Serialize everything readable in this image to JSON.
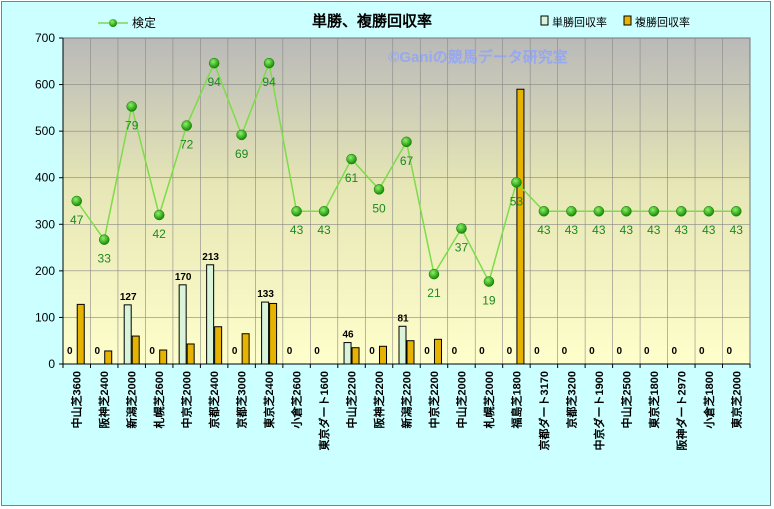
{
  "chart_data": {
    "type": "bar",
    "title": "単勝、複勝回収率",
    "watermark": "©Ganiの競馬データ研究室",
    "ylim": [
      0,
      700
    ],
    "yticks": [
      "0",
      "100",
      "200",
      "300",
      "400",
      "500",
      "600",
      "700"
    ],
    "categories": [
      "中山芝3600",
      "阪神芝2400",
      "新潟芝2000",
      "札幌芝2600",
      "中京芝2000",
      "京都芝2400",
      "京都芝3000",
      "東京芝2400",
      "小倉芝2600",
      "東京ダート1600",
      "中山芝2200",
      "阪神芝2200",
      "新潟芝2200",
      "中京芝2200",
      "中山芝2000",
      "札幌芝2000",
      "福島芝1800",
      "京都ダート3170",
      "京都芝3200",
      "中京ダート1900",
      "中山芝2500",
      "東京芝1800",
      "阪神ダート2970",
      "小倉芝1800",
      "東京芝2000"
    ],
    "legend": [
      "検定",
      "単勝回収率",
      "複勝回収率"
    ],
    "series": [
      {
        "name": "検定",
        "type": "line",
        "color": "#7ddc4a",
        "marker_color": "#1faa00",
        "values": [
          350,
          267,
          553,
          320,
          512,
          646,
          492,
          646,
          328,
          328,
          440,
          375,
          477,
          193,
          291,
          177,
          390,
          328,
          328,
          328,
          328,
          328,
          328,
          328,
          328
        ],
        "labels": [
          "47",
          "33",
          "79",
          "42",
          "72",
          "94",
          "69",
          "94",
          "43",
          "43",
          "61",
          "50",
          "67",
          "21",
          "37",
          "19",
          "53",
          "43",
          "43",
          "43",
          "43",
          "43",
          "43",
          "43",
          "43"
        ]
      },
      {
        "name": "単勝回収率",
        "type": "bar",
        "color": "#d8f5dc",
        "values": [
          0,
          0,
          127,
          0,
          170,
          213,
          0,
          133,
          0,
          0,
          46,
          0,
          81,
          0,
          0,
          0,
          0,
          0,
          0,
          0,
          0,
          0,
          0,
          0,
          0
        ],
        "labels": [
          "0",
          "0",
          "127",
          "0",
          "170",
          "213",
          "0",
          "133",
          "0",
          "0",
          "46",
          "0",
          "81",
          "0",
          "0",
          "0",
          "0",
          "0",
          "0",
          "0",
          "0",
          "0",
          "0",
          "0",
          "0"
        ]
      },
      {
        "name": "複勝回収率",
        "type": "bar",
        "color": "#e6b400",
        "values": [
          128,
          28,
          60,
          30,
          43,
          80,
          65,
          130,
          0,
          0,
          35,
          38,
          50,
          53,
          0,
          0,
          590,
          0,
          0,
          0,
          0,
          0,
          0,
          0,
          0
        ]
      }
    ]
  }
}
